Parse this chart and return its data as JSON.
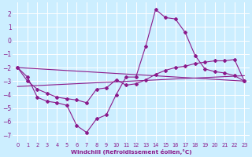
{
  "title": "",
  "xlabel": "Windchill (Refroidissement éolien,°C)",
  "ylabel": "",
  "bg_color": "#cceeff",
  "line_color": "#8b1a8b",
  "grid_color": "#ffffff",
  "xlim": [
    -0.5,
    23.5
  ],
  "ylim": [
    -7.5,
    2.8
  ],
  "xticks": [
    0,
    1,
    2,
    3,
    4,
    5,
    6,
    7,
    8,
    9,
    10,
    11,
    12,
    13,
    14,
    15,
    16,
    17,
    18,
    19,
    20,
    21,
    22,
    23
  ],
  "yticks": [
    -7,
    -6,
    -5,
    -4,
    -3,
    -2,
    -1,
    0,
    1,
    2
  ],
  "line1_x": [
    0,
    1,
    2,
    3,
    4,
    5,
    6,
    7,
    8,
    9,
    10,
    11,
    12,
    13,
    14,
    15,
    16,
    17,
    18,
    19,
    20,
    21,
    22,
    23
  ],
  "line1_y": [
    -2.0,
    -2.7,
    -4.2,
    -4.5,
    -4.6,
    -4.8,
    -6.3,
    -6.8,
    -5.8,
    -5.5,
    -4.0,
    -2.7,
    -2.7,
    -0.4,
    2.3,
    1.7,
    1.6,
    0.6,
    -1.1,
    -2.1,
    -2.3,
    -2.4,
    -2.6,
    -3.0
  ],
  "line2_x": [
    0,
    1,
    2,
    3,
    4,
    5,
    6,
    7,
    8,
    9,
    10,
    11,
    12,
    13,
    14,
    15,
    16,
    17,
    18,
    19,
    20,
    21,
    22,
    23
  ],
  "line2_y": [
    -2.0,
    -3.0,
    -3.6,
    -3.9,
    -4.2,
    -4.3,
    -4.4,
    -4.6,
    -3.6,
    -3.5,
    -2.9,
    -3.3,
    -3.2,
    -2.9,
    -2.5,
    -2.2,
    -2.0,
    -1.9,
    -1.7,
    -1.6,
    -1.5,
    -1.5,
    -1.4,
    -3.0
  ],
  "line3_x": [
    0,
    23
  ],
  "line3_y": [
    -2.0,
    -3.0
  ],
  "line4_x": [
    0,
    23
  ],
  "line4_y": [
    -3.4,
    -2.6
  ]
}
